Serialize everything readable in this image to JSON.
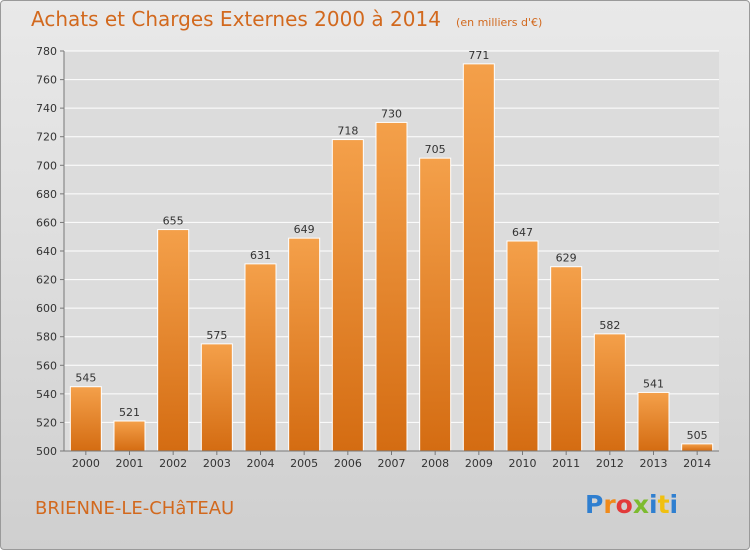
{
  "title": "Achats et Charges Externes 2000 à 2014",
  "subtitle": "(en milliers d'€)",
  "commune": "BRIENNE-LE-CHâTEAU",
  "logo_text": "Proxiti",
  "colors": {
    "bar": "#f0902a",
    "bar_dark": "#d06a10",
    "text_accent": "#d2691e",
    "grid": "#ffffff"
  },
  "chart_data": {
    "type": "bar",
    "title": "Achats et Charges Externes 2000 à 2014",
    "subtitle": "(en milliers d'€)",
    "categories": [
      "2000",
      "2001",
      "2002",
      "2003",
      "2004",
      "2005",
      "2006",
      "2007",
      "2008",
      "2009",
      "2010",
      "2011",
      "2012",
      "2013",
      "2014"
    ],
    "values": [
      545,
      521,
      655,
      575,
      631,
      649,
      718,
      730,
      705,
      771,
      647,
      629,
      582,
      541,
      505
    ],
    "ylim": [
      500,
      780
    ],
    "yticks": [
      500,
      520,
      540,
      560,
      580,
      600,
      620,
      640,
      660,
      680,
      700,
      720,
      740,
      760,
      780
    ],
    "grid": true,
    "xlabel": "",
    "ylabel": ""
  }
}
